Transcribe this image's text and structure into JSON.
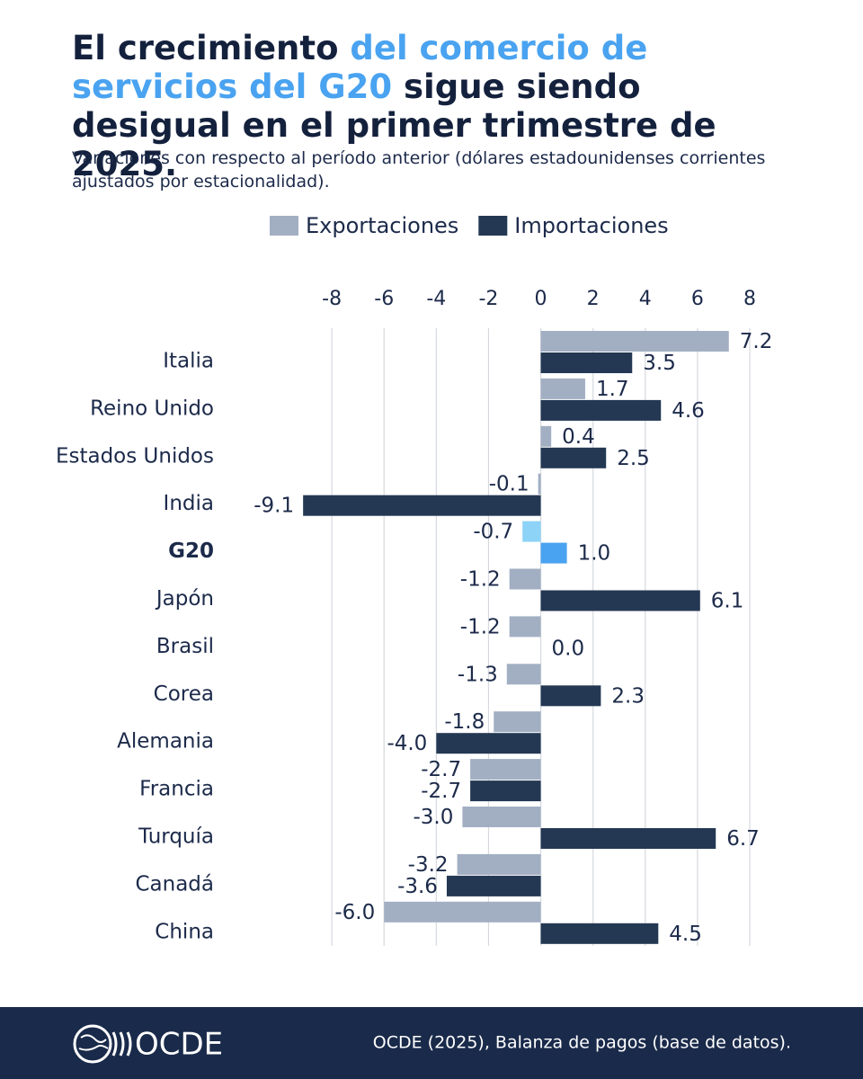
{
  "chart_data": {
    "type": "hbar",
    "title": [
      "El crecimiento",
      "del comercio de servicios del G20",
      "sigue siendo desigual en el primer trimestre de 2025."
    ],
    "subtitle": "Variaciones con respecto al período anterior (dólares estadounidenses corrientes ajustados por estacionalidad).",
    "categories": [
      "Italia",
      "Reino Unido",
      "Estados Unidos",
      "India",
      "G20",
      "Japón",
      "Brasil",
      "Corea",
      "Alemania",
      "Francia",
      "Turquía",
      "Canadá",
      "China"
    ],
    "series": [
      {
        "name": "Exportaciones",
        "color": "#a2afc3",
        "values": [
          7.2,
          1.7,
          0.4,
          -0.1,
          -0.7,
          -1.2,
          -1.2,
          -1.3,
          -1.8,
          -2.7,
          -3.0,
          -3.2,
          -6.0
        ],
        "value_labels": [
          "7.2",
          "1.7",
          "0.4",
          "-0.1",
          "-0.7",
          "-1.2",
          "-1.2",
          "-1.3",
          "-1.8",
          "-2.7",
          "-3.0",
          "-3.2",
          "-6.0"
        ]
      },
      {
        "name": "Importaciones",
        "color": "#243853",
        "values": [
          3.5,
          4.6,
          2.5,
          -9.1,
          1.0,
          6.1,
          0.0,
          2.3,
          -4.0,
          -2.7,
          6.7,
          -3.6,
          4.5
        ],
        "value_labels": [
          "3.5",
          "4.6",
          "2.5",
          "-9.1",
          "1.0",
          "6.1",
          "0.0",
          "2.3",
          "-4.0",
          "-2.7",
          "6.7",
          "-3.6",
          "4.5"
        ]
      }
    ],
    "highlight": {
      "index": 4,
      "colors": [
        "#8dd3f7",
        "#4aa3f0"
      ]
    },
    "xlim": [
      -10,
      8
    ],
    "xticks": [
      -8,
      -6,
      -4,
      -2,
      0,
      2,
      4,
      6,
      8
    ],
    "grid": true,
    "legend": "top"
  },
  "footer": {
    "logo": "OCDE",
    "source": "OCDE (2025), Balanza de pagos (base de datos)."
  }
}
